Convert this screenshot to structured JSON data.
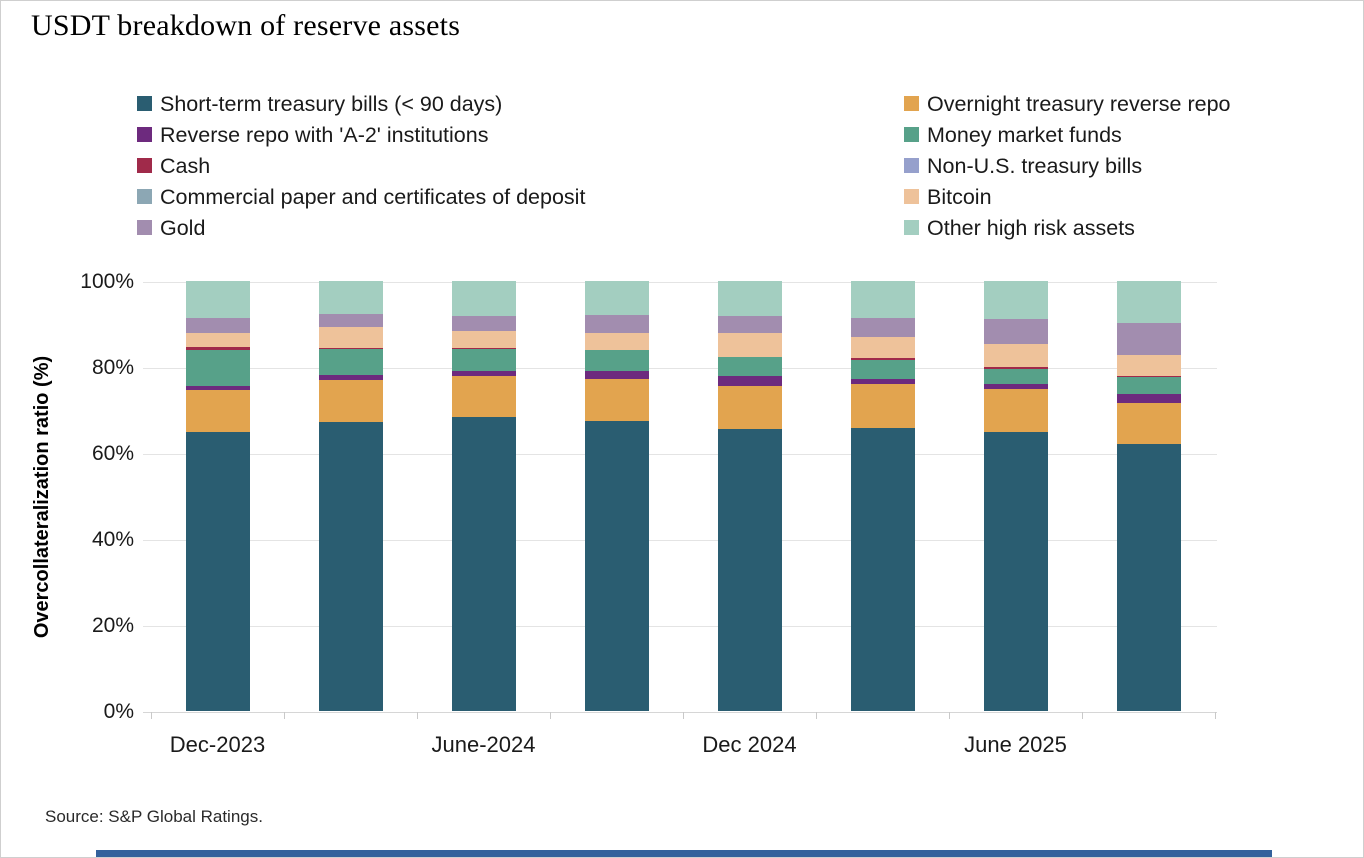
{
  "page": {
    "source_note": "Source: S&P Global Ratings.",
    "accent_bar_color": "#33619c",
    "frame_border_color": "#cfcfcf"
  },
  "legend": {
    "columns": [
      [
        {
          "label": "Short-term treasury bills (< 90 days)",
          "color": "#2a5d71"
        },
        {
          "label": "Reverse repo with 'A-2' institutions",
          "color": "#6d2a7e"
        },
        {
          "label": "Cash",
          "color": "#a02a4a"
        },
        {
          "label": "Commercial paper and certificates of deposit",
          "color": "#8ca7b4"
        },
        {
          "label": "Gold",
          "color": "#a28daf"
        }
      ],
      [
        {
          "label": "Overnight treasury reverse repo",
          "color": "#e2a44f"
        },
        {
          "label": "Money market funds",
          "color": "#57a189"
        },
        {
          "label": "Non-U.S. treasury bills",
          "color": "#96a0cc"
        },
        {
          "label": "Bitcoin",
          "color": "#eec29a"
        },
        {
          "label": "Other high risk assets",
          "color": "#a3cec0"
        }
      ]
    ]
  },
  "chart_data": {
    "type": "bar",
    "subtype": "stacked-100pct",
    "title": "USDT breakdown of reserve assets",
    "ylabel": "Overcollateralization ratio (%)",
    "xlabel": "",
    "ylim": [
      0,
      100
    ],
    "yticks": [
      0,
      20,
      40,
      60,
      80,
      100
    ],
    "ytick_suffix": "%",
    "grid": "horizontal",
    "legend_position": "top",
    "categories": [
      "Dec-2023",
      "",
      "June-2024",
      "",
      "Dec 2024",
      "",
      "June 2025",
      ""
    ],
    "series_order": "bottom-to-top",
    "series": [
      {
        "name": "Short-term treasury bills (< 90 days)",
        "color": "#2a5d71",
        "values": [
          65.0,
          67.1,
          68.3,
          67.4,
          65.6,
          65.8,
          64.8,
          62.2
        ]
      },
      {
        "name": "Overnight treasury reverse repo",
        "color": "#e2a44f",
        "values": [
          9.7,
          9.8,
          9.6,
          9.8,
          10.1,
          10.3,
          10.0,
          9.5
        ]
      },
      {
        "name": "Reverse repo with 'A-2' institutions",
        "color": "#6d2a7e",
        "values": [
          1.0,
          1.2,
          1.2,
          1.8,
          2.3,
          1.2,
          1.2,
          2.1
        ]
      },
      {
        "name": "Money market funds",
        "color": "#57a189",
        "values": [
          8.3,
          6.0,
          5.2,
          5.0,
          4.4,
          4.3,
          3.6,
          3.9
        ]
      },
      {
        "name": "Cash",
        "color": "#a02a4a",
        "values": [
          0.6,
          0.3,
          0.2,
          0.0,
          0.0,
          0.4,
          0.4,
          0.3
        ]
      },
      {
        "name": "Non-U.S. treasury bills",
        "color": "#96a0cc",
        "values": [
          0.0,
          0.0,
          0.0,
          0.0,
          0.0,
          0.0,
          0.0,
          0.0
        ]
      },
      {
        "name": "Commercial paper and certificates of deposit",
        "color": "#8ca7b4",
        "values": [
          0.0,
          0.0,
          0.0,
          0.0,
          0.0,
          0.0,
          0.0,
          0.0
        ]
      },
      {
        "name": "Bitcoin",
        "color": "#eec29a",
        "values": [
          3.4,
          4.9,
          3.9,
          3.9,
          5.5,
          5.0,
          5.4,
          4.9
        ]
      },
      {
        "name": "Gold",
        "color": "#a28daf",
        "values": [
          3.4,
          3.1,
          3.5,
          4.1,
          3.9,
          4.5,
          5.7,
          7.4
        ]
      },
      {
        "name": "Other high risk assets",
        "color": "#a3cec0",
        "values": [
          8.6,
          7.6,
          8.1,
          8.0,
          8.2,
          8.5,
          8.9,
          9.7
        ]
      }
    ]
  }
}
